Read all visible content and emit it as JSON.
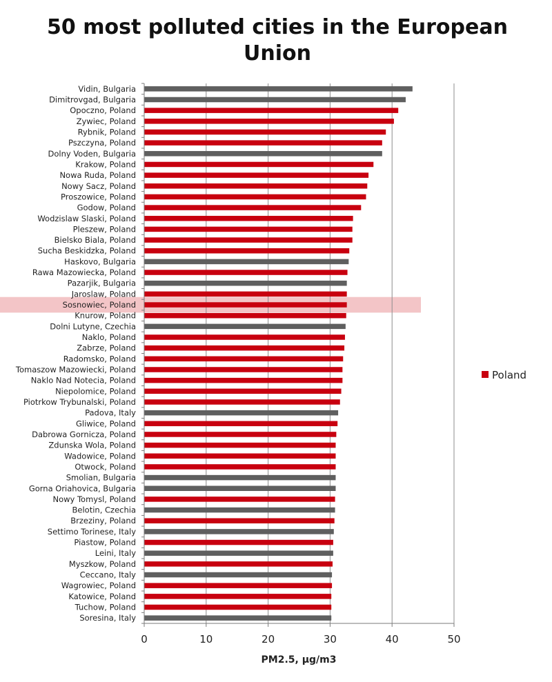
{
  "chart_data": {
    "type": "bar",
    "orientation": "horizontal",
    "title": "50 most polluted cities in the European Union",
    "title_lines": [
      "50 most polluted cities in the European",
      "Union"
    ],
    "xlabel": "PM2.5, µg/m3",
    "ylabel": "",
    "xlim": [
      0,
      50
    ],
    "xticks": [
      0,
      10,
      20,
      30,
      40,
      50
    ],
    "grid": "vertical",
    "legend": {
      "position": "right",
      "entries": [
        {
          "label": "Poland",
          "color": "#c8000f"
        }
      ]
    },
    "colors": {
      "poland": "#c8000f",
      "other": "#5f5f5f",
      "highlight": "#f3c5c7",
      "grid": "#8c8c8c"
    },
    "highlighted_category": "Sosnowiec, Poland",
    "categories": [
      "Vidin, Bulgaria",
      "Dimitrovgad, Bulgaria",
      "Opoczno, Poland",
      "Zywiec, Poland",
      "Rybnik, Poland",
      "Pszczyna, Poland",
      "Dolny Voden, Bulgaria",
      "Krakow, Poland",
      "Nowa Ruda, Poland",
      "Nowy Sacz, Poland",
      "Proszowice, Poland",
      "Godow, Poland",
      "Wodzislaw Slaski, Poland",
      "Pleszew, Poland",
      "Bielsko Biala, Poland",
      "Sucha Beskidzka, Poland",
      "Haskovo, Bulgaria",
      "Rawa Mazowiecka, Poland",
      "Pazarjik, Bulgaria",
      "Jaroslaw, Poland",
      "Sosnowiec, Poland",
      "Knurow, Poland",
      "Dolni Lutyne, Czechia",
      "Naklo, Poland",
      "Zabrze, Poland",
      "Radomsko, Poland",
      "Tomaszow Mazowiecki, Poland",
      "Naklo Nad Notecia, Poland",
      "Niepolomice, Poland",
      "Piotrkow Trybunalski, Poland",
      "Padova, Italy",
      "Gliwice, Poland",
      "Dabrowa Gornicza, Poland",
      "Zdunska Wola, Poland",
      "Wadowice, Poland",
      "Otwock, Poland",
      "Smolian, Bulgaria",
      "Gorna Oriahovica, Bulgaria",
      "Nowy Tomysl, Poland",
      "Belotin, Czechia",
      "Brzeziny, Poland",
      "Settimo Torinese, Italy",
      "Piastow, Poland",
      "Leini, Italy",
      "Myszkow, Poland",
      "Ceccano, Italy",
      "Wagrowiec, Poland",
      "Katowice, Poland",
      "Tuchow, Poland",
      "Soresina, Italy"
    ],
    "values": [
      43.3,
      42.2,
      41.0,
      40.3,
      39.0,
      38.4,
      38.4,
      37.0,
      36.2,
      36.0,
      35.8,
      35.0,
      33.7,
      33.6,
      33.6,
      33.1,
      33.0,
      32.8,
      32.7,
      32.7,
      32.7,
      32.6,
      32.5,
      32.4,
      32.3,
      32.1,
      32.0,
      32.0,
      31.8,
      31.6,
      31.3,
      31.2,
      31.0,
      30.9,
      30.9,
      30.9,
      30.9,
      30.9,
      30.8,
      30.8,
      30.7,
      30.6,
      30.5,
      30.5,
      30.4,
      30.3,
      30.3,
      30.2,
      30.2,
      30.2
    ],
    "is_poland": [
      false,
      false,
      true,
      true,
      true,
      true,
      false,
      true,
      true,
      true,
      true,
      true,
      true,
      true,
      true,
      true,
      false,
      true,
      false,
      true,
      true,
      true,
      false,
      true,
      true,
      true,
      true,
      true,
      true,
      true,
      false,
      true,
      true,
      true,
      true,
      true,
      false,
      false,
      true,
      false,
      true,
      false,
      true,
      false,
      true,
      false,
      true,
      true,
      true,
      false
    ]
  }
}
